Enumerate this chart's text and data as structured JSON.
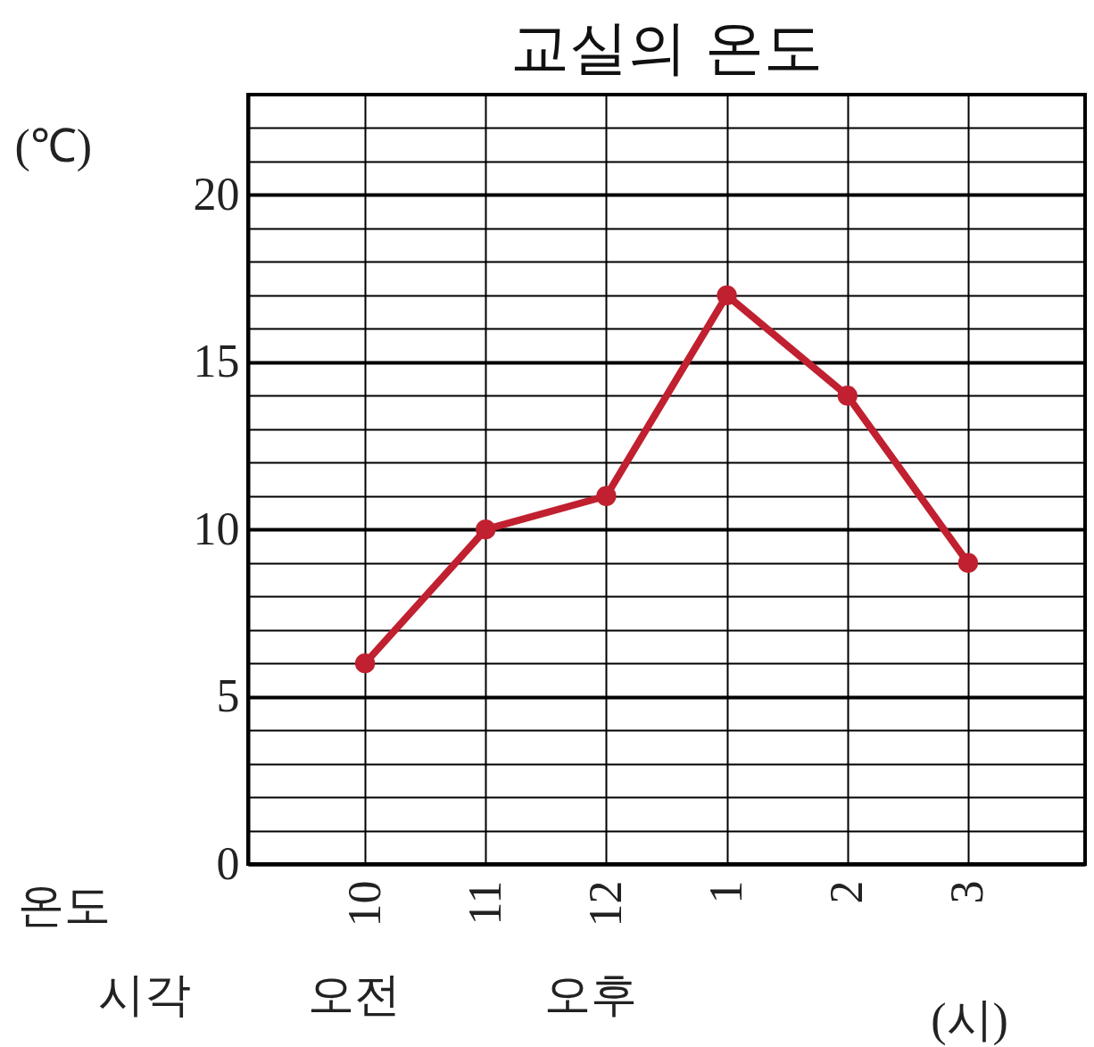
{
  "chart_data": {
    "type": "line",
    "title": "교실의 온도",
    "ylabel": "(℃)",
    "xlabel": "(시)",
    "categories": [
      "10",
      "11",
      "12",
      "1",
      "2",
      "3"
    ],
    "series": [
      {
        "color": "#c0202f",
        "values": [
          6,
          10,
          11,
          17,
          14,
          9
        ]
      }
    ],
    "ylim": [
      0,
      23
    ],
    "yticks": [
      0,
      {
        "value": 1,
        "label": null
      },
      {
        "value": 2,
        "label": null
      },
      {
        "value": 3,
        "label": null
      },
      {
        "value": 4,
        "label": null
      },
      5,
      {
        "value": 6,
        "label": null
      },
      {
        "value": 7,
        "label": null
      },
      {
        "value": 8,
        "label": null
      },
      {
        "value": 9,
        "label": null
      },
      10,
      {
        "value": 11,
        "label": null
      },
      {
        "value": 12,
        "label": null
      },
      {
        "value": 13,
        "label": null
      },
      {
        "value": 14,
        "label": null
      },
      15,
      {
        "value": 16,
        "label": null
      },
      {
        "value": 17,
        "label": null
      },
      {
        "value": 18,
        "label": null
      },
      {
        "value": 19,
        "label": null
      },
      20,
      {
        "value": 21,
        "label": null
      },
      {
        "value": 22,
        "label": null
      },
      {
        "value": 23,
        "label": null
      }
    ],
    "grid": true,
    "marker": "circle",
    "line_style": "solid",
    "annotations": [
      "온도",
      "시각",
      "오전",
      "오후"
    ]
  }
}
